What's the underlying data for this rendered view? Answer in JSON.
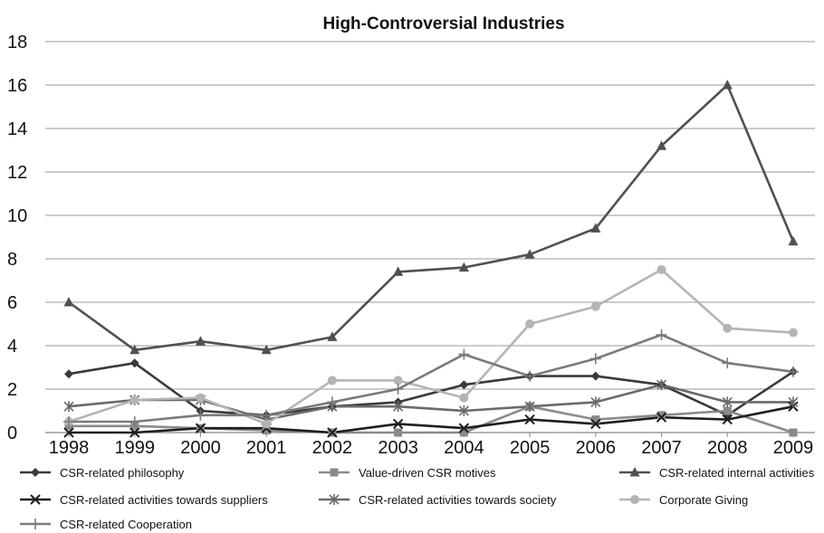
{
  "chart_data": {
    "type": "line",
    "title": "High-Controversial Industries",
    "xlabel": "",
    "ylabel": "",
    "x": [
      "1998",
      "1999",
      "2000",
      "2001",
      "2002",
      "2003",
      "2004",
      "2005",
      "2006",
      "2007",
      "2008",
      "2009"
    ],
    "ylim": [
      0,
      18
    ],
    "yticks": [
      "0",
      "2",
      "4",
      "6",
      "8",
      "10",
      "12",
      "14",
      "16",
      "18"
    ],
    "grid": true,
    "legend_position": "bottom",
    "series": [
      {
        "name": "CSR-related philosophy",
        "marker": "diamond",
        "color": "#3a3a3a",
        "values": [
          2.7,
          3.2,
          1.0,
          0.8,
          1.2,
          1.4,
          2.2,
          2.6,
          2.6,
          2.2,
          0.8,
          2.8
        ]
      },
      {
        "name": "Value-driven CSR motives",
        "marker": "square",
        "color": "#8a8a8a",
        "values": [
          0.3,
          0.3,
          0.2,
          0.1,
          0.0,
          0.0,
          0.0,
          1.2,
          0.6,
          0.8,
          1.0,
          0.0
        ]
      },
      {
        "name": "CSR-related internal activities",
        "marker": "triangle",
        "color": "#505050",
        "values": [
          6.0,
          3.8,
          4.2,
          3.8,
          4.4,
          7.4,
          7.6,
          8.2,
          9.4,
          13.2,
          16.0,
          8.8
        ]
      },
      {
        "name": "CSR-related activities towards suppliers",
        "marker": "x",
        "color": "#1e1e1e",
        "values": [
          0.0,
          0.0,
          0.2,
          0.2,
          0.0,
          0.4,
          0.2,
          0.6,
          0.4,
          0.7,
          0.6,
          1.2
        ]
      },
      {
        "name": "CSR-related activities towards society",
        "marker": "star",
        "color": "#6a6a6a",
        "values": [
          1.2,
          1.5,
          1.5,
          0.6,
          1.2,
          1.2,
          1.0,
          1.2,
          1.4,
          2.2,
          1.4,
          1.4
        ]
      },
      {
        "name": "Corporate Giving",
        "marker": "circle",
        "color": "#b4b4b4",
        "values": [
          0.5,
          1.5,
          1.6,
          0.4,
          2.4,
          2.4,
          1.6,
          5.0,
          5.8,
          7.5,
          4.8,
          4.6
        ]
      },
      {
        "name": "CSR-related Cooperation",
        "marker": "plus",
        "color": "#7a7a7a",
        "values": [
          0.5,
          0.5,
          0.8,
          0.8,
          1.4,
          2.0,
          3.6,
          2.6,
          3.4,
          4.5,
          3.2,
          2.8
        ]
      }
    ]
  }
}
